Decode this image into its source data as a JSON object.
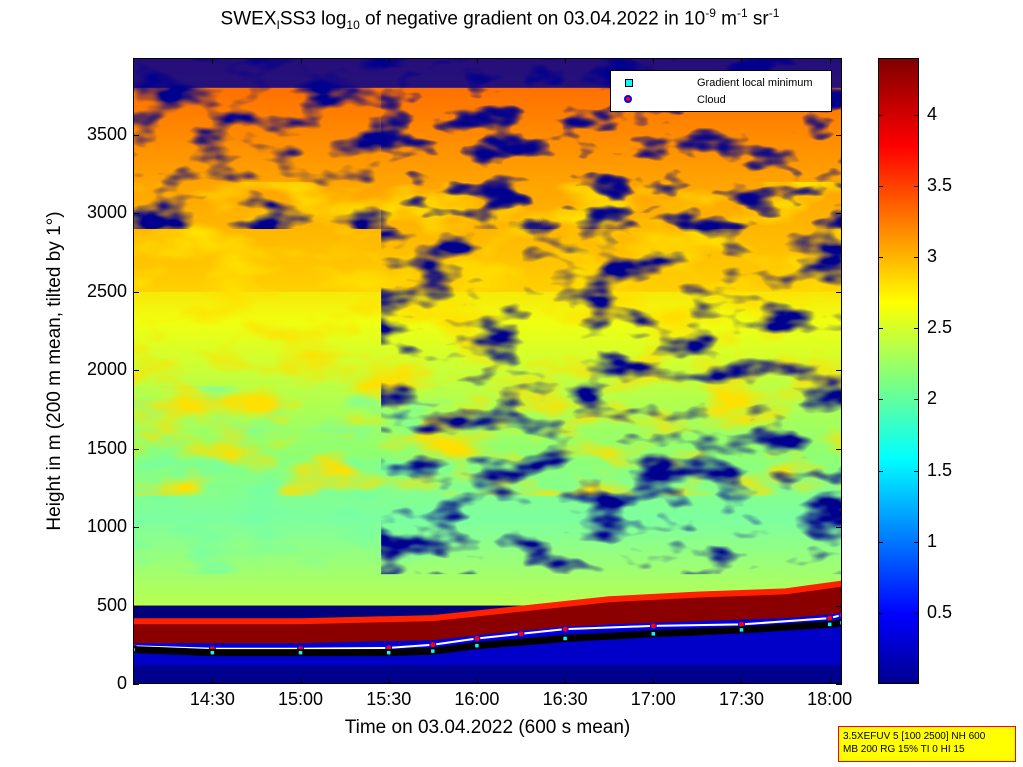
{
  "title": {
    "p1": "SWEX",
    "sub1": "I",
    "p2": "SS3 log",
    "sub2": "10",
    "p3": " of negative gradient on 03.04.2022 in 10",
    "sup1": "-9",
    "p4": " m",
    "sup2": "-1",
    "p5": " sr",
    "sup3": "-1"
  },
  "legend": {
    "item1": "Gradient local minimum",
    "item2": "Cloud"
  },
  "colorbar": {
    "ticks": [
      "4",
      "3.5",
      "3",
      "2.5",
      "2",
      "1.5",
      "1",
      "0.5"
    ],
    "tick_values": [
      4,
      3.5,
      3,
      2.5,
      2,
      1.5,
      1,
      0.5
    ],
    "range": [
      0,
      4.4
    ],
    "colormap": "jet"
  },
  "infobox": {
    "line1": "3.5XEFUV 5 [100 2500] NH 600",
    "line2": "MB 200 RG 15% TI 0 HI 15"
  },
  "chart_data": {
    "type": "heatmap",
    "xlabel": "Time on 03.04.2022 (600 s mean)",
    "ylabel": "Height in m (200 m mean, tilted by 1°)",
    "x_ticks": [
      "14:30",
      "15:00",
      "15:30",
      "16:00",
      "16:30",
      "17:00",
      "17:30",
      "18:00"
    ],
    "x_tick_hours": [
      14.5,
      15.0,
      15.5,
      16.0,
      16.5,
      17.0,
      17.5,
      18.0
    ],
    "xlim_hours": [
      14.05,
      18.07
    ],
    "y_ticks": [
      "0",
      "500",
      "1000",
      "1500",
      "2000",
      "2500",
      "3000",
      "3500"
    ],
    "y_tick_values": [
      0,
      500,
      1000,
      1500,
      2000,
      2500,
      3000,
      3500
    ],
    "ylim": [
      0,
      3990
    ],
    "zlim": [
      0,
      4.4
    ],
    "colormap": "jet",
    "gradient_local_minimum": {
      "name": "Gradient local minimum",
      "color": "#00ffff",
      "x_hours": [
        14.05,
        14.5,
        15.0,
        15.5,
        15.75,
        16.0,
        16.5,
        17.0,
        17.5,
        18.0,
        18.07
      ],
      "y": [
        220,
        200,
        200,
        200,
        210,
        245,
        290,
        320,
        345,
        380,
        390
      ]
    },
    "cloud": {
      "name": "Cloud",
      "color": "#ff0000",
      "x_hours": [
        14.05,
        14.5,
        15.0,
        15.5,
        15.75,
        16.0,
        16.25,
        16.5,
        17.0,
        17.5,
        18.0,
        18.07
      ],
      "y": [
        240,
        225,
        225,
        230,
        250,
        290,
        320,
        350,
        370,
        380,
        420,
        440
      ]
    },
    "cloud_layer": {
      "x_hours": [
        14.05,
        15.0,
        15.75,
        16.25,
        16.75,
        17.25,
        17.75,
        18.07
      ],
      "base": [
        260,
        260,
        280,
        340,
        380,
        400,
        420,
        450
      ],
      "top": [
        400,
        400,
        420,
        480,
        540,
        570,
        590,
        640
      ]
    }
  }
}
